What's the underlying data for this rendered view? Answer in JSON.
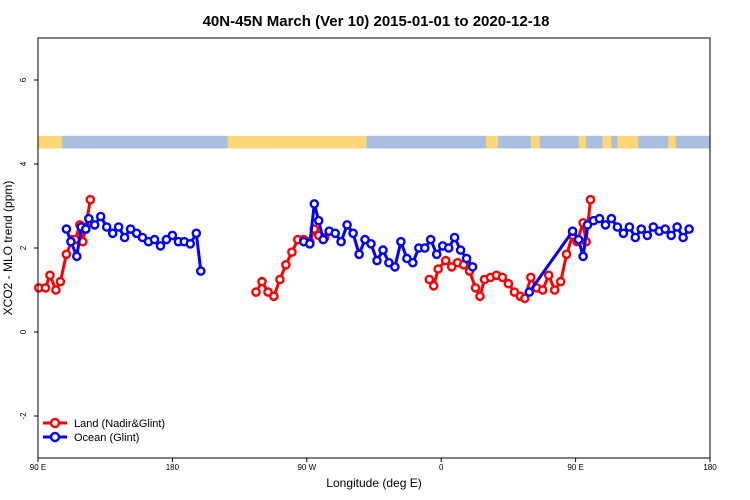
{
  "chart_data": {
    "type": "line",
    "title": "40N-45N March (Ver 10)   2015-01-01 to 2020-12-18",
    "xlabel": "Longitude (deg E)",
    "ylabel": "XCO2 - MLO trend (ppm)",
    "xlim": [
      90,
      540
    ],
    "ylim": [
      -3,
      7
    ],
    "x_ticks": [
      {
        "value": 90,
        "label": "90 E"
      },
      {
        "value": 180,
        "label": "180"
      },
      {
        "value": 270,
        "label": "90 W"
      },
      {
        "value": 360,
        "label": "0"
      },
      {
        "value": 450,
        "label": "90 E"
      },
      {
        "value": 540,
        "label": "180"
      }
    ],
    "y_ticks": [
      {
        "value": -2,
        "label": "-2"
      },
      {
        "value": 0,
        "label": "0"
      },
      {
        "value": 2,
        "label": "2"
      },
      {
        "value": 4,
        "label": "4"
      },
      {
        "value": 6,
        "label": "6"
      }
    ],
    "grid": false,
    "legend": "bottom-left",
    "land_ocean_strip": {
      "y_range": [
        4.37,
        4.67
      ],
      "land_color": "#fcd778",
      "ocean_color": "#a8bfdf",
      "ocean_segments": [
        [
          106,
          217
        ],
        [
          310,
          390
        ],
        [
          398,
          420
        ],
        [
          426,
          452
        ],
        [
          457,
          468
        ],
        [
          474,
          478
        ],
        [
          492,
          512
        ],
        [
          517,
          540
        ]
      ]
    },
    "series": [
      {
        "name": "Land (Nadir&Glint)",
        "color": "#ff0000",
        "segments": [
          [
            [
              90.5,
              1.05
            ],
            [
              95,
              1.05
            ],
            [
              98,
              1.35
            ],
            [
              102,
              1.0
            ],
            [
              105,
              1.2
            ],
            [
              109,
              1.85
            ],
            [
              113,
              2.2
            ],
            [
              115,
              2.2
            ],
            [
              118,
              2.55
            ],
            [
              120,
              2.15
            ],
            [
              122,
              2.5
            ],
            [
              125,
              3.15
            ]
          ],
          [
            [
              236,
              0.95
            ],
            [
              240,
              1.2
            ],
            [
              244,
              0.95
            ],
            [
              248,
              0.85
            ],
            [
              252,
              1.25
            ],
            [
              256,
              1.6
            ],
            [
              260,
              1.9
            ],
            [
              264,
              2.2
            ],
            [
              268,
              2.2
            ],
            [
              272,
              2.15
            ],
            [
              275,
              2.45
            ],
            [
              278,
              2.3
            ],
            [
              282,
              2.25
            ]
          ],
          [
            [
              352,
              1.25
            ],
            [
              355,
              1.1
            ],
            [
              358,
              1.5
            ],
            [
              363,
              1.7
            ],
            [
              367,
              1.55
            ],
            [
              371,
              1.65
            ],
            [
              375,
              1.6
            ],
            [
              379,
              1.45
            ],
            [
              383,
              1.05
            ],
            [
              386,
              0.85
            ],
            [
              389,
              1.25
            ],
            [
              393,
              1.3
            ],
            [
              397,
              1.35
            ],
            [
              401,
              1.3
            ],
            [
              405,
              1.15
            ],
            [
              409,
              0.95
            ],
            [
              413,
              0.85
            ],
            [
              416,
              0.8
            ],
            [
              420,
              1.3
            ],
            [
              424,
              1.05
            ],
            [
              428,
              1.0
            ],
            [
              432,
              1.35
            ],
            [
              436,
              1.0
            ],
            [
              440,
              1.2
            ],
            [
              444,
              1.85
            ],
            [
              448,
              2.3
            ],
            [
              451,
              2.15
            ],
            [
              455,
              2.6
            ],
            [
              457,
              2.15
            ],
            [
              460,
              3.15
            ]
          ]
        ]
      },
      {
        "name": "Ocean (Glint)",
        "color": "#0000ff",
        "segments": [
          [
            [
              122,
              2.45
            ],
            [
              124,
              2.7
            ],
            [
              128,
              2.55
            ],
            [
              132,
              2.75
            ],
            [
              136,
              2.5
            ],
            [
              140,
              2.35
            ],
            [
              144,
              2.5
            ],
            [
              148,
              2.25
            ],
            [
              152,
              2.45
            ],
            [
              156,
              2.35
            ],
            [
              160,
              2.25
            ],
            [
              164,
              2.15
            ],
            [
              168,
              2.2
            ],
            [
              172,
              2.05
            ],
            [
              176,
              2.2
            ],
            [
              180,
              2.3
            ],
            [
              184,
              2.15
            ],
            [
              188,
              2.15
            ],
            [
              192,
              2.1
            ],
            [
              196,
              2.35
            ],
            [
              199,
              1.45
            ]
          ],
          [
            [
              109,
              2.45
            ],
            [
              112,
              2.15
            ],
            [
              116,
              1.8
            ],
            [
              119,
              2.5
            ],
            [
              122,
              2.45
            ]
          ],
          [
            [
              268,
              2.15
            ],
            [
              272,
              2.1
            ],
            [
              275,
              3.05
            ],
            [
              278,
              2.65
            ],
            [
              281,
              2.2
            ],
            [
              285,
              2.4
            ],
            [
              289,
              2.35
            ],
            [
              293,
              2.15
            ],
            [
              297,
              2.55
            ],
            [
              301,
              2.35
            ],
            [
              305,
              1.85
            ],
            [
              309,
              2.2
            ],
            [
              313,
              2.1
            ],
            [
              317,
              1.7
            ],
            [
              321,
              1.95
            ],
            [
              325,
              1.65
            ],
            [
              329,
              1.55
            ],
            [
              333,
              2.15
            ],
            [
              337,
              1.75
            ],
            [
              341,
              1.65
            ],
            [
              345,
              2.0
            ],
            [
              349,
              2.0
            ],
            [
              353,
              2.2
            ],
            [
              357,
              1.85
            ],
            [
              361,
              2.05
            ],
            [
              365,
              2.0
            ],
            [
              369,
              2.25
            ],
            [
              373,
              1.95
            ],
            [
              377,
              1.75
            ],
            [
              381,
              1.55
            ]
          ],
          [
            [
              419,
              0.95
            ],
            [
              448,
              2.4
            ],
            [
              452,
              2.2
            ],
            [
              455,
              1.8
            ],
            [
              458,
              2.55
            ],
            [
              462,
              2.65
            ],
            [
              466,
              2.7
            ],
            [
              470,
              2.55
            ],
            [
              474,
              2.7
            ],
            [
              478,
              2.5
            ],
            [
              482,
              2.35
            ],
            [
              486,
              2.5
            ],
            [
              490,
              2.25
            ],
            [
              494,
              2.45
            ],
            [
              498,
              2.3
            ],
            [
              502,
              2.5
            ],
            [
              506,
              2.4
            ],
            [
              510,
              2.45
            ],
            [
              514,
              2.3
            ],
            [
              518,
              2.5
            ],
            [
              522,
              2.25
            ],
            [
              526,
              2.45
            ]
          ]
        ]
      }
    ]
  }
}
